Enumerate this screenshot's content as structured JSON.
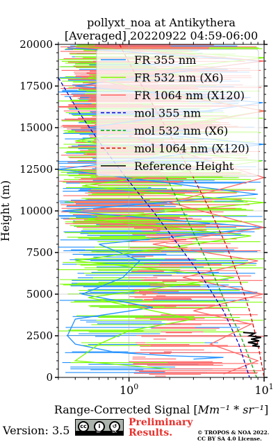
{
  "chart_data": {
    "type": "line",
    "title": "pollyxt_noa at Antikythera",
    "subtitle": "[Averaged] 20220922 04:59-06:00",
    "xlabel_prefix": "Range-Corrected Signal [",
    "xlabel_math": "Mm⁻¹ * sr⁻¹",
    "xlabel_suffix": "]",
    "ylabel": "Height (m)",
    "x_scale": "log",
    "xlim": [
      0.3,
      10
    ],
    "ylim": [
      0,
      20000
    ],
    "x_ticks": [
      {
        "value": 1,
        "label_base": "10",
        "label_exp": "0"
      },
      {
        "value": 10,
        "label_base": "10",
        "label_exp": "1"
      }
    ],
    "y_ticks": [
      0,
      2500,
      5000,
      7500,
      10000,
      12500,
      15000,
      17500,
      20000
    ],
    "y_tick_labels": [
      "0",
      "2500",
      "5000",
      "7500",
      "10000",
      "12500",
      "15000",
      "17500",
      "20000"
    ],
    "grid": true,
    "legend_position": "top-right",
    "series": [
      {
        "name": "FR 355 nm",
        "color": "#1f8fff",
        "style": "solid",
        "x": [
          0.35,
          9.5,
          0.4,
          9.8,
          0.5,
          10,
          0.3,
          9,
          0.32,
          10,
          0.6,
          1.2,
          0.9,
          0.45,
          1.5,
          0.4,
          0.35,
          0.4,
          0.8,
          2,
          5,
          3
        ],
        "y": [
          19800,
          19000,
          17500,
          16500,
          15000,
          14000,
          12500,
          11000,
          10000,
          9000,
          8000,
          7000,
          6000,
          5000,
          4200,
          3500,
          2500,
          2000,
          1500,
          1300,
          1200,
          1100
        ]
      },
      {
        "name": "FR 532 nm (X6)",
        "color": "#7cfc00",
        "style": "solid",
        "x": [
          0.4,
          10,
          0.5,
          10,
          0.4,
          9.6,
          0.45,
          10,
          0.5,
          8,
          0.4,
          6,
          0.5,
          3,
          1,
          0.6,
          0.4,
          2
        ],
        "y": [
          19900,
          19200,
          18000,
          16000,
          14200,
          13000,
          11500,
          10500,
          9500,
          8500,
          7000,
          6000,
          4800,
          3500,
          2800,
          2000,
          1000,
          500
        ]
      },
      {
        "name": "FR 1064 nm (X120)",
        "color": "#ff6666",
        "style": "solid",
        "x": [
          0.5,
          10,
          0.6,
          10,
          1,
          10,
          2,
          10,
          1.5,
          9,
          2.5,
          9.8,
          3,
          8,
          4,
          9,
          5
        ],
        "y": [
          19900,
          19000,
          17800,
          16000,
          14500,
          12000,
          10500,
          9000,
          8000,
          7000,
          6000,
          5000,
          4000,
          3200,
          2000,
          1000,
          200
        ]
      },
      {
        "name": "mol 355 nm",
        "color": "#0000cc",
        "style": "dashed",
        "x": [
          0.3,
          0.42,
          0.62,
          0.95,
          1.5,
          2.3,
          3.5,
          5.0,
          6.5,
          7.8
        ],
        "y": [
          18000,
          16000,
          14000,
          12000,
          10000,
          8000,
          6000,
          4000,
          2000,
          0
        ]
      },
      {
        "name": "mol 532 nm (X6)",
        "color": "#00aa00",
        "style": "dashed",
        "x": [
          1.9,
          2.5,
          3.3,
          4.3,
          5.5,
          6.7,
          7.9,
          8.8
        ],
        "y": [
          12000,
          10000,
          8000,
          6000,
          4000,
          2500,
          1000,
          0
        ]
      },
      {
        "name": "mol 1064 nm (X120)",
        "color": "#dd0000",
        "style": "dashed",
        "x": [
          0.85,
          1.15,
          1.6,
          2.2,
          3.0,
          4.0,
          5.2,
          6.5,
          7.8,
          9.0,
          10
        ],
        "y": [
          20000,
          18000,
          16000,
          14000,
          12000,
          10000,
          8000,
          6000,
          4000,
          2000,
          0
        ]
      },
      {
        "name": "Reference Height",
        "color": "#000000",
        "style": "solid",
        "x": [
          7.0,
          8.5,
          7.8,
          9.5,
          8.0,
          9.2,
          7.6,
          9.0,
          8.2,
          9.3
        ],
        "y": [
          2700,
          2650,
          2500,
          2400,
          2300,
          2200,
          2100,
          2000,
          1900,
          1850
        ]
      }
    ]
  },
  "footer": {
    "version_label": "Version: 3.5",
    "cc_badge": {
      "icons": [
        "cc-icon",
        "by-icon",
        "sa-icon"
      ],
      "bar_left": "BY",
      "bar_right": "SA"
    },
    "preliminary_line1": "Preliminary",
    "preliminary_line2": "Results.",
    "copyright_line1": "© TROPOS & NOA 2022.",
    "copyright_line2": "CC BY SA 4.0 License.",
    "preliminary_color": "#e8312d"
  }
}
